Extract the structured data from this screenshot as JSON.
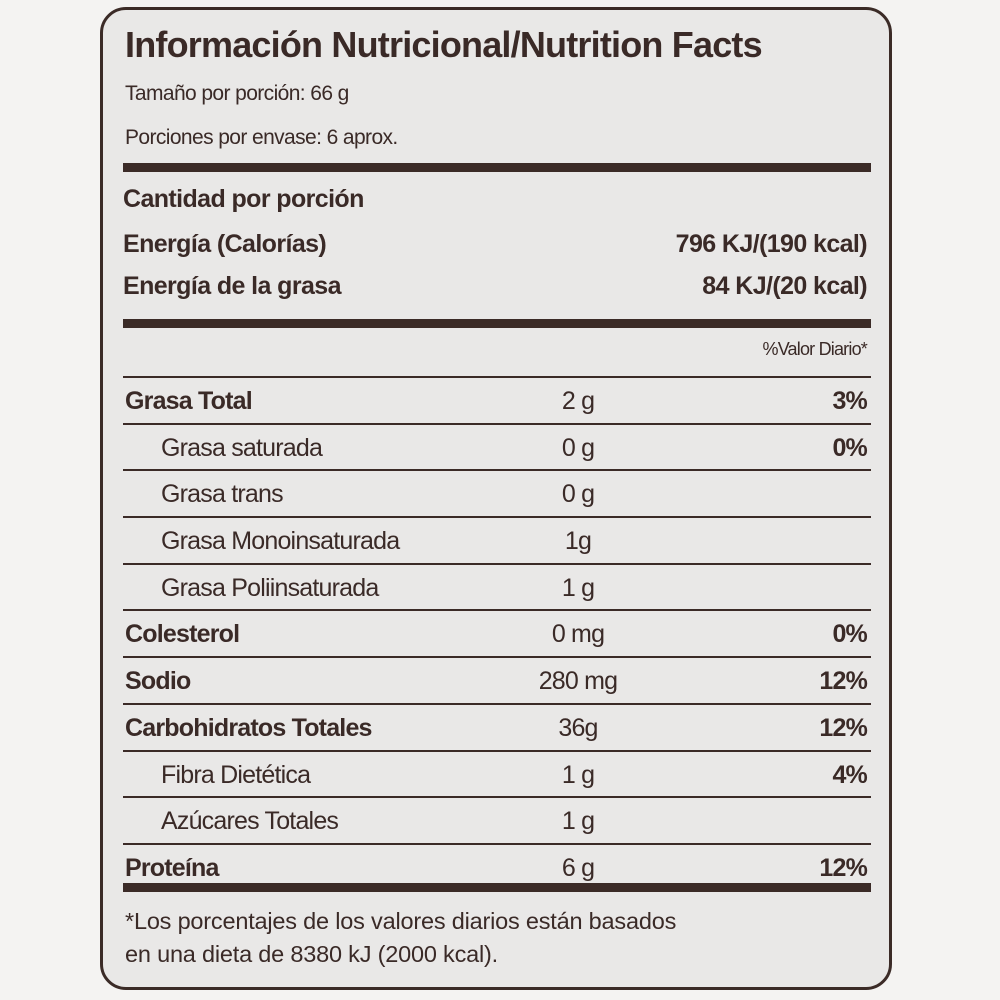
{
  "title": "Información Nutricional/Nutrition Facts",
  "serving_size": "Tamaño por porción: 66 g",
  "servings_per_container": "Porciones por envase: 6 aprox.",
  "amount_per_serving": "Cantidad por porción",
  "energy": {
    "label": "Energía (Calorías)",
    "value": "796 KJ/(190 kcal)"
  },
  "energy_fat": {
    "label": "Energía de la grasa",
    "value": "84 KJ/(20 kcal)"
  },
  "daily_value_header": "%Valor Diario*",
  "nutrients": [
    {
      "name": "Grasa Total",
      "amount": "2 g",
      "dv": "3%"
    },
    {
      "name": "Grasa saturada",
      "amount": "0 g",
      "dv": "0%"
    },
    {
      "name": "Grasa trans",
      "amount": "0 g",
      "dv": ""
    },
    {
      "name": "Grasa Monoinsaturada",
      "amount": "1g",
      "dv": ""
    },
    {
      "name": "Grasa Poliinsaturada",
      "amount": "1 g",
      "dv": ""
    },
    {
      "name": "Colesterol",
      "amount": "0 mg",
      "dv": "0%"
    },
    {
      "name": "Sodio",
      "amount": "280 mg",
      "dv": "12%"
    },
    {
      "name": "Carbohidratos Totales",
      "amount": "36g",
      "dv": "12%"
    },
    {
      "name": "Fibra Dietética",
      "amount": "1 g",
      "dv": "4%"
    },
    {
      "name": "Azúcares Totales",
      "amount": "1 g",
      "dv": ""
    },
    {
      "name": "Proteína",
      "amount": "6 g",
      "dv": "12%"
    }
  ],
  "footnote_line1": "*Los porcentajes de los valores diarios están basados",
  "footnote_line2": "en una dieta de 8380 kJ (2000 kcal).",
  "colors": {
    "ink": "#3b2b27",
    "label_background": "#e9e8e7"
  }
}
